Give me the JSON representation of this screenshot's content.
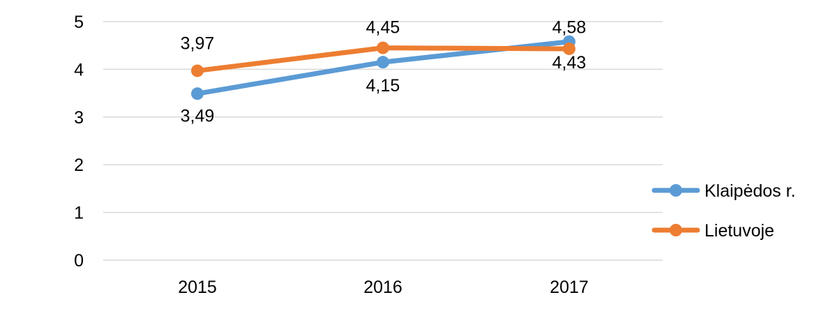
{
  "chart_data": {
    "type": "line",
    "categories": [
      "2015",
      "2016",
      "2017"
    ],
    "series": [
      {
        "name": "Klaipėdos r.",
        "values": [
          3.49,
          4.15,
          4.58
        ],
        "labels": [
          "3,49",
          "4,15",
          "4,58"
        ],
        "color": "#5B9BD5"
      },
      {
        "name": "Lietuvoje",
        "values": [
          3.97,
          4.45,
          4.43
        ],
        "labels": [
          "3,97",
          "4,45",
          "4,43"
        ],
        "color": "#ED7D31"
      }
    ],
    "ylim": [
      0,
      5
    ],
    "yticks": [
      "0",
      "1",
      "2",
      "3",
      "4",
      "5"
    ],
    "grid": true,
    "legend": "right",
    "gridline_color": "#d9d9d9"
  }
}
